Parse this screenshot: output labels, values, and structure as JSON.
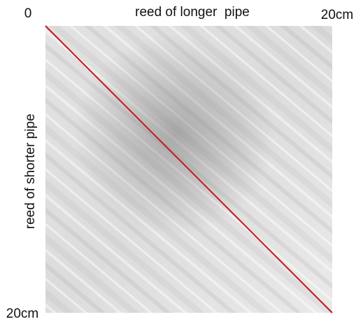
{
  "labels": {
    "origin": "0",
    "top": "reed of longer  pipe",
    "top_end": "20cm",
    "left": "reed of shorter pipe",
    "bottom_end": "20cm"
  }
}
